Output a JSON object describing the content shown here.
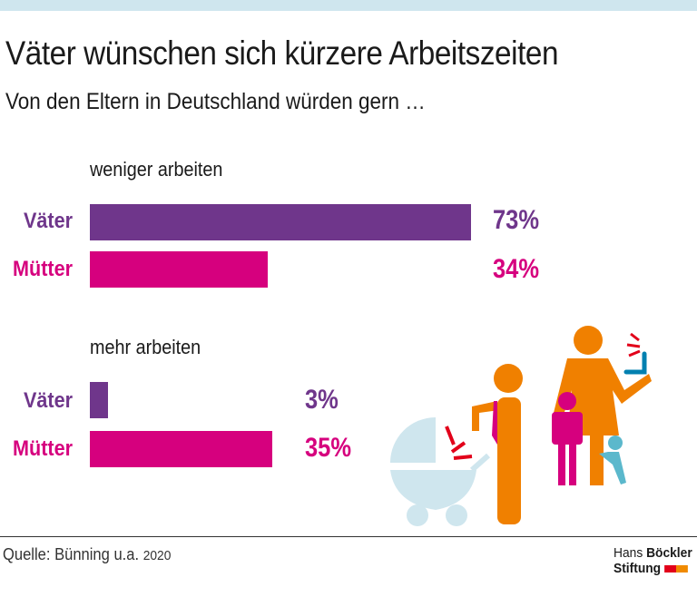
{
  "header": {
    "title": "Väter wünschen sich kürzere Arbeitszeiten",
    "subtitle": "Von den Eltern in Deutschland würden gern …"
  },
  "chart_data": {
    "type": "bar",
    "orientation": "horizontal",
    "unit": "%",
    "groups": [
      {
        "title": "weniger arbeiten",
        "categories": [
          "Väter",
          "Mütter"
        ],
        "values": [
          73,
          34
        ],
        "labels": [
          "73%",
          "34%"
        ]
      },
      {
        "title": "mehr arbeiten",
        "categories": [
          "Väter",
          "Mütter"
        ],
        "values": [
          3,
          35
        ],
        "labels": [
          "3%",
          "35%"
        ]
      }
    ],
    "colors": {
      "Väter": "#6f368b",
      "Mütter": "#d6007e"
    },
    "grid": false
  },
  "footer": {
    "source": "Quelle: Bünning u.a.",
    "year": "2020",
    "logo": {
      "line1a": "Hans",
      "line1b": "Böckler",
      "line2": "Stiftung"
    }
  },
  "colors": {
    "band": "#cfe6ee",
    "logo_red": "#e2001a",
    "logo_orange": "#f08a00",
    "figure_orange": "#f08000",
    "pram": "#cfe6ee"
  }
}
